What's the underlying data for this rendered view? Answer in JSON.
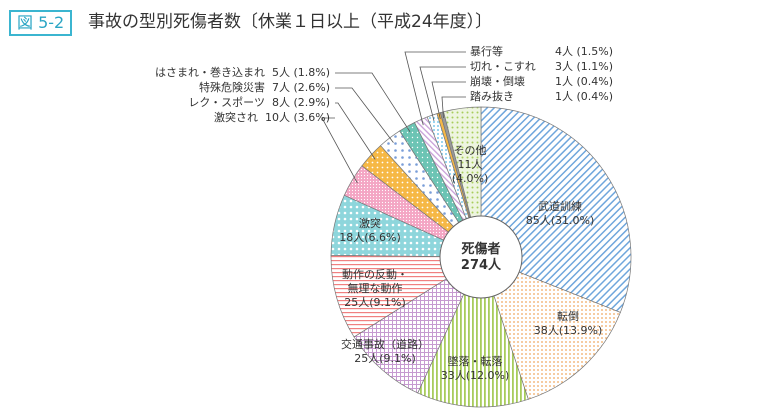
{
  "figure_label": "図 5-2",
  "title": "事故の型別死傷者数〔休業１日以上（平成24年度）〕",
  "chart_data": {
    "type": "pie",
    "title": "事故の型別死傷者数〔休業１日以上（平成24年度）〕",
    "center_label": "死傷者",
    "total_label": "274人",
    "total": 274,
    "slices": [
      {
        "name": "武道訓練",
        "value": 85,
        "value_label": "85人",
        "pct_label": "(31.0%)",
        "color": "#6fa6dc"
      },
      {
        "name": "転倒",
        "value": 38,
        "value_label": "38人",
        "pct_label": "(13.9%)",
        "color": "#f0a860"
      },
      {
        "name": "墜落・転落",
        "value": 33,
        "value_label": "33人",
        "pct_label": "(12.0%)",
        "color": "#a8cc5c"
      },
      {
        "name": "交通事故（道路）",
        "value": 25,
        "value_label": "25人",
        "pct_label": "(9.1%)",
        "color": "#c69ad0"
      },
      {
        "name": "動作の反動・無理な動作",
        "value": 25,
        "value_label": "25人",
        "pct_label": "(9.1%)",
        "color": "#f08080"
      },
      {
        "name": "激突",
        "value": 18,
        "value_label": "18人",
        "pct_label": "(6.6%)",
        "color": "#8ed6dc"
      },
      {
        "name": "激突され",
        "value": 10,
        "value_label": "10人",
        "pct_label": "(3.6%)",
        "color": "#f4a6c4"
      },
      {
        "name": "レク・スポーツ",
        "value": 8,
        "value_label": "8人",
        "pct_label": "(2.9%)",
        "color": "#f6b845"
      },
      {
        "name": "特殊危険災害",
        "value": 7,
        "value_label": "7人",
        "pct_label": "(2.6%)",
        "color": "#7a9ed8"
      },
      {
        "name": "はさまれ・巻き込まれ",
        "value": 5,
        "value_label": "5人",
        "pct_label": "(1.8%)",
        "color": "#6cc4b4"
      },
      {
        "name": "暴行等",
        "value": 4,
        "value_label": "4人",
        "pct_label": "(1.5%)",
        "color": "#c8a0d8"
      },
      {
        "name": "切れ・こすれ",
        "value": 3,
        "value_label": "3人",
        "pct_label": "(1.1%)",
        "color": "#7cc8ec"
      },
      {
        "name": "崩壊・倒壊",
        "value": 1,
        "value_label": "1人",
        "pct_label": "(0.4%)",
        "color": "#f6b845"
      },
      {
        "name": "踏み抜き",
        "value": 1,
        "value_label": "1人",
        "pct_label": "(0.4%)",
        "color": "#999999"
      },
      {
        "name": "その他",
        "value": 11,
        "value_label": "11人",
        "pct_label": "(4.0%)",
        "color": "#a8cc5c"
      }
    ]
  }
}
